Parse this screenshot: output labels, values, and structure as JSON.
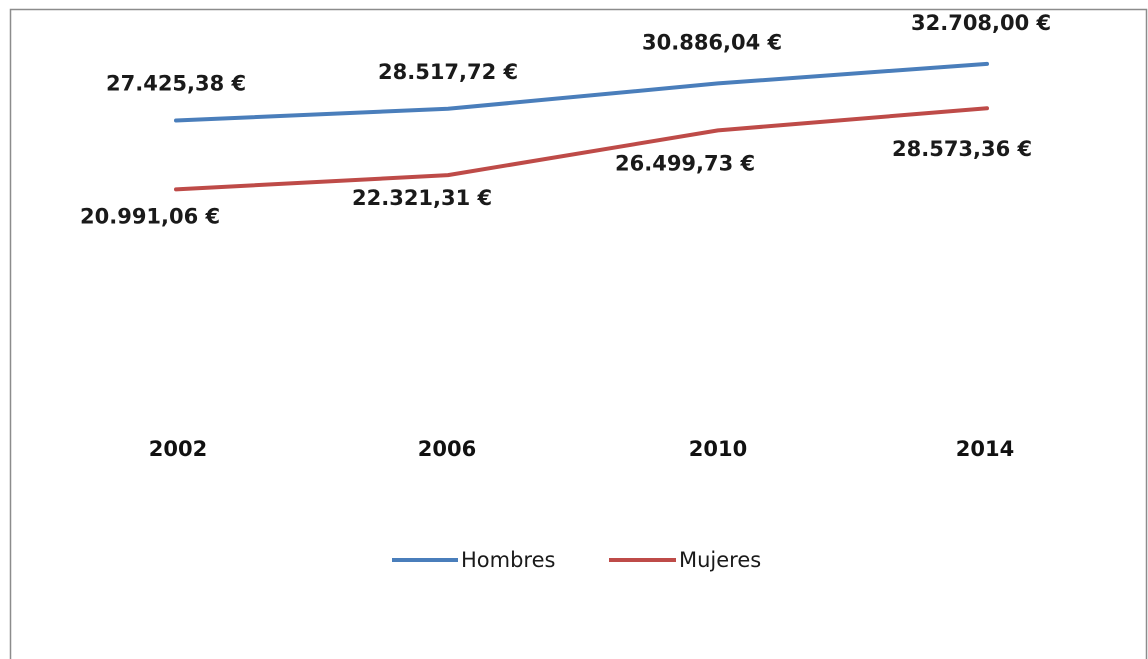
{
  "chart_data": {
    "type": "line",
    "title": "",
    "xlabel": "",
    "ylabel": "",
    "categories": [
      "2002",
      "2006",
      "2010",
      "2014"
    ],
    "series": [
      {
        "name": "Hombres",
        "color": "#4a7ebb",
        "values": [
          27425.38,
          28517.72,
          30886.04,
          32708.0
        ],
        "labels": [
          "27.425,38 €",
          "28.517,72 €",
          "30.886,04 €",
          "32.708,00 €"
        ]
      },
      {
        "name": "Mujeres",
        "color": "#be4b48",
        "values": [
          20991.06,
          22321.31,
          26499.73,
          28573.36
        ],
        "labels": [
          "20.991,06 €",
          "22.321,31 €",
          "26.499,73 €",
          "28.573,36 €"
        ]
      }
    ],
    "grid": false,
    "legend_position": "bottom",
    "y_axis_visible": false
  }
}
